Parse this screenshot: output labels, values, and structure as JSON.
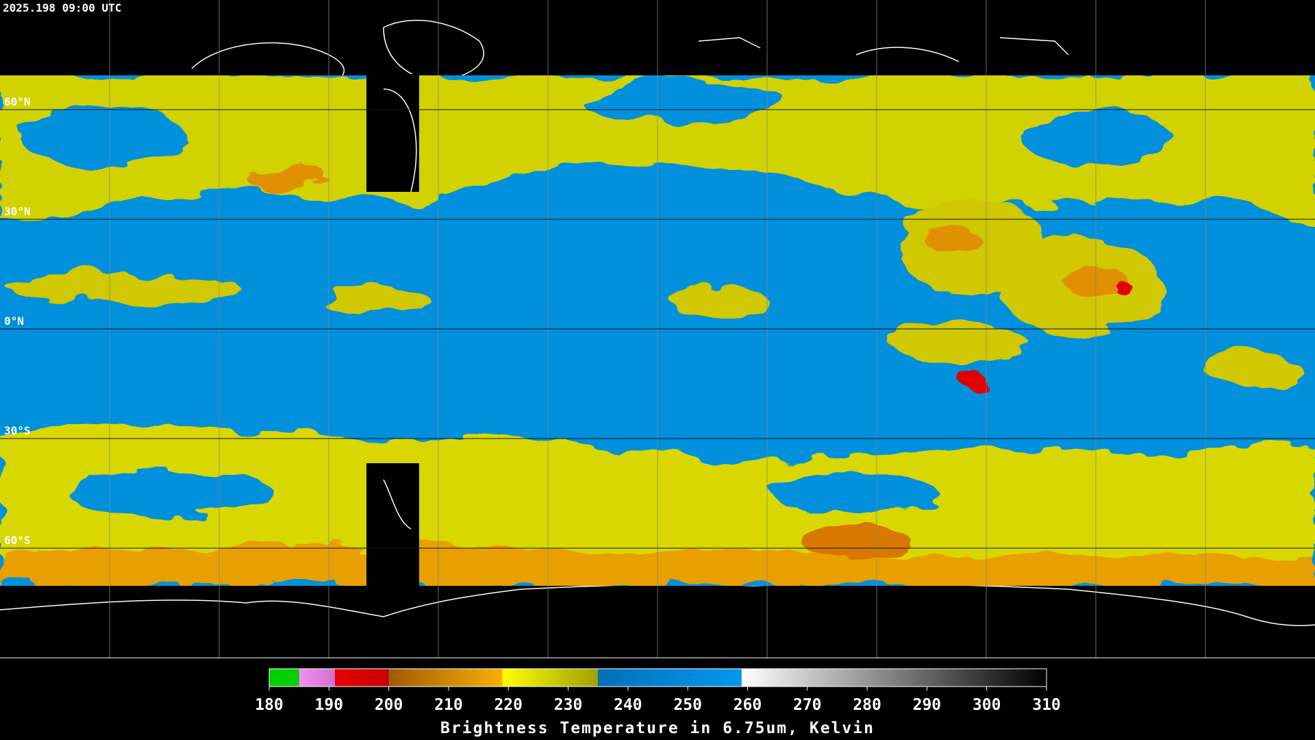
{
  "header": {
    "timestamp": "2025.198 09:00 UTC"
  },
  "map": {
    "lat_labels": [
      "60°N",
      "30°N",
      "0°N",
      "30°S",
      "60°S"
    ]
  },
  "colorbar": {
    "title": "Brightness Temperature in 6.75um, Kelvin",
    "range": [
      180,
      310
    ],
    "ticks": [
      180,
      190,
      200,
      210,
      220,
      230,
      240,
      250,
      260,
      270,
      280,
      290,
      300,
      310
    ],
    "segments": [
      {
        "from": 180,
        "to": 185,
        "colors": [
          "#00d000",
          "#00d000"
        ]
      },
      {
        "from": 185,
        "to": 191,
        "colors": [
          "#f090f0",
          "#d070d0"
        ]
      },
      {
        "from": 191,
        "to": 200,
        "colors": [
          "#e80000",
          "#c80000"
        ]
      },
      {
        "from": 200,
        "to": 219,
        "colors": [
          "#a05a00",
          "#f8b000"
        ]
      },
      {
        "from": 219,
        "to": 235,
        "colors": [
          "#ffff00",
          "#a0a000"
        ]
      },
      {
        "from": 235,
        "to": 259,
        "colors": [
          "#0070b8",
          "#0098f0"
        ]
      },
      {
        "from": 259,
        "to": 310,
        "colors": [
          "#ffffff",
          "#000000"
        ]
      }
    ]
  }
}
